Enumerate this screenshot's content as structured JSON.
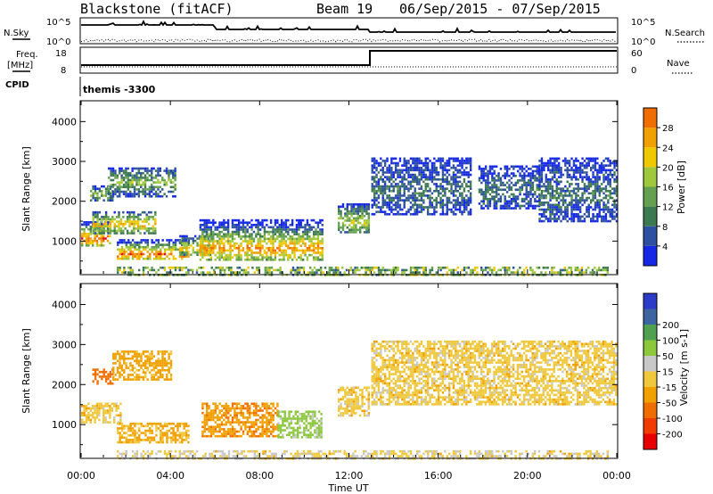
{
  "header": {
    "station": "Blackstone (fitACF)",
    "beam": "Beam 19",
    "dates": "06/Sep/2015 - 07/Sep/2015"
  },
  "params": {
    "nsky_label": "N.Sky",
    "nsearch_label": "N.Search",
    "freq_label_1": "Freq.",
    "freq_label_2": "[MHz]",
    "nave_label": "Nave",
    "cpid_label": "CPID",
    "cpid_value": "themis -3300",
    "nsky_ticks": [
      "10^5",
      "10^0"
    ],
    "nsearch_ticks": [
      "10^5",
      "10^0"
    ],
    "freq_ticks": [
      "18",
      "8"
    ],
    "nave_ticks": [
      "60",
      "0"
    ]
  },
  "colors": {
    "power": [
      "#1428e6",
      "#2d50a0",
      "#3c7850",
      "#64a050",
      "#a0c83c",
      "#f0c800",
      "#f0a000",
      "#f06e00",
      "#dc1414"
    ],
    "velocity": [
      "#e60000",
      "#f03c00",
      "#f06e00",
      "#f0a000",
      "#f0c83c",
      "#c8c8c8",
      "#8cc83c",
      "#50a050",
      "#3c64a0",
      "#2d3cc8"
    ]
  },
  "chart_data": [
    {
      "type": "heatmap",
      "title": "Power",
      "xlabel": "Time UT",
      "ylabel": "Slant Range [km]",
      "xticks": [
        "00:00",
        "04:00",
        "08:00",
        "12:00",
        "16:00",
        "20:00",
        "00:00"
      ],
      "xlim_hours": [
        0,
        24
      ],
      "yticks": [
        1000,
        2000,
        3000,
        4000
      ],
      "ylim": [
        180,
        4500
      ],
      "colorbar": {
        "label": "Power [dB]",
        "ticks": [
          4,
          8,
          12,
          16,
          20,
          24,
          28
        ],
        "range": [
          0,
          32
        ]
      },
      "regions": [
        {
          "t": [
            0.0,
            1.3
          ],
          "r": [
            900,
            1500
          ],
          "core_r": 1080,
          "peak": 27
        },
        {
          "t": [
            0.5,
            3.3
          ],
          "r": [
            1200,
            1750
          ],
          "core_r": 1450,
          "peak": 22
        },
        {
          "t": [
            0.4,
            1.4
          ],
          "r": [
            2050,
            2400
          ],
          "core_r": 2200,
          "peak": 16
        },
        {
          "t": [
            1.2,
            4.2
          ],
          "r": [
            2150,
            2850
          ],
          "core_r": 2500,
          "peak": 14
        },
        {
          "t": [
            1.6,
            4.8
          ],
          "r": [
            550,
            1050
          ],
          "core_r": 700,
          "peak": 27
        },
        {
          "t": [
            4.4,
            5.9
          ],
          "r": [
            650,
            1150
          ],
          "core_r": 850,
          "peak": 20
        },
        {
          "t": [
            5.3,
            10.8
          ],
          "r": [
            550,
            1550
          ],
          "core_r": 850,
          "peak": 24
        },
        {
          "t": [
            11.5,
            12.9
          ],
          "r": [
            1200,
            1950
          ],
          "core_r": 1500,
          "peak": 18
        },
        {
          "t": [
            13.0,
            17.5
          ],
          "r": [
            1700,
            3100
          ],
          "core_r": 2300,
          "peak": 8
        },
        {
          "t": [
            17.8,
            20.5
          ],
          "r": [
            1800,
            2900
          ],
          "core_r": 2300,
          "peak": 8
        },
        {
          "t": [
            20.5,
            24.0
          ],
          "r": [
            1500,
            3100
          ],
          "core_r": 2200,
          "peak": 8
        }
      ]
    },
    {
      "type": "heatmap",
      "title": "Velocity",
      "xlabel": "Time UT",
      "ylabel": "Slant Range [km]",
      "xticks": [
        "00:00",
        "04:00",
        "08:00",
        "12:00",
        "16:00",
        "20:00",
        "00:00"
      ],
      "xlim_hours": [
        0,
        24
      ],
      "yticks": [
        1000,
        2000,
        3000,
        4000
      ],
      "ylim": [
        180,
        4500
      ],
      "colorbar": {
        "label": "Velocity [m s-1]",
        "ticks": [
          -200,
          -100,
          -50,
          -15,
          15,
          50,
          100,
          200
        ],
        "range": [
          -250,
          250
        ]
      },
      "regions": [
        {
          "t": [
            0.0,
            1.8
          ],
          "r": [
            1050,
            1550
          ],
          "vel": 0
        },
        {
          "t": [
            1.6,
            4.8
          ],
          "r": [
            550,
            1050
          ],
          "vel": -20
        },
        {
          "t": [
            0.5,
            1.4
          ],
          "r": [
            2050,
            2400
          ],
          "vel": -80
        },
        {
          "t": [
            1.4,
            4.0
          ],
          "r": [
            2150,
            2850
          ],
          "vel": -30
        },
        {
          "t": [
            5.4,
            8.8
          ],
          "r": [
            700,
            1550
          ],
          "vel": -40
        },
        {
          "t": [
            8.8,
            10.8
          ],
          "r": [
            700,
            1350
          ],
          "vel": 60
        },
        {
          "t": [
            11.5,
            12.9
          ],
          "r": [
            1200,
            1950
          ],
          "vel": 0
        },
        {
          "t": [
            13.0,
            24.0
          ],
          "r": [
            1500,
            3100
          ],
          "vel": 0
        }
      ]
    }
  ]
}
